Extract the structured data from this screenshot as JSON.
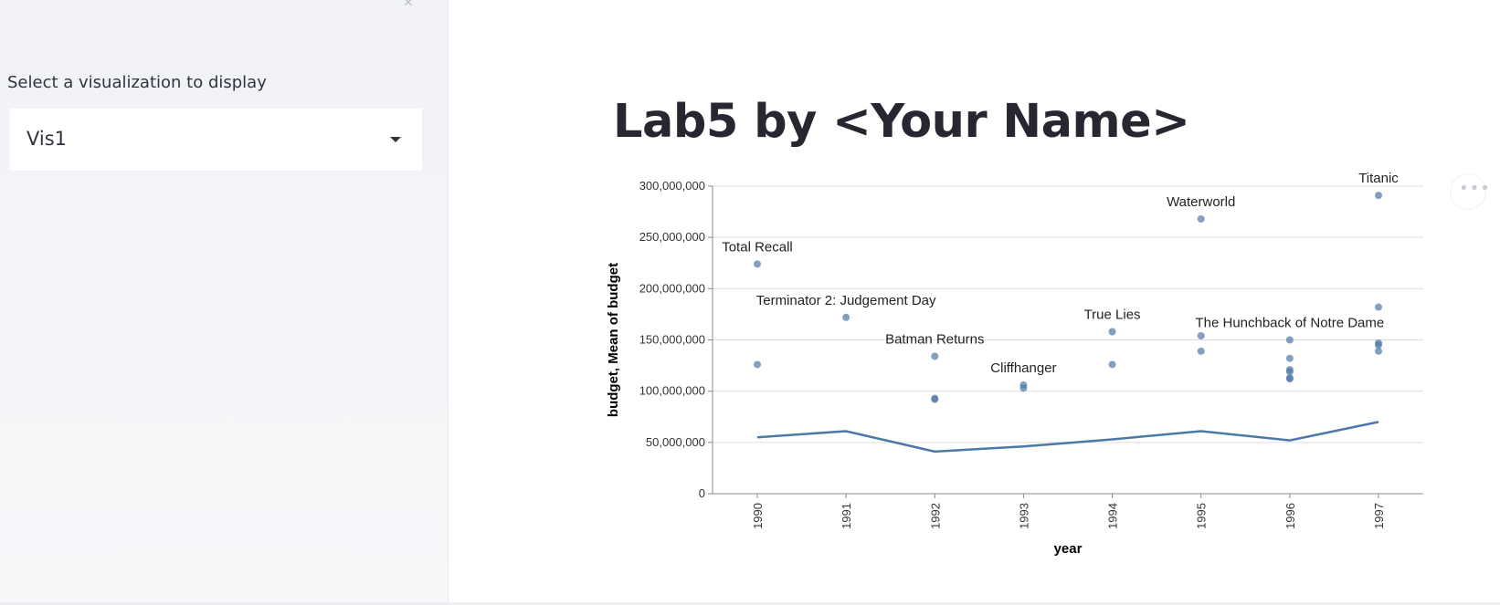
{
  "sidebar": {
    "select_label": "Select a visualization to display",
    "selected_value": "Vis1"
  },
  "main": {
    "title": "Lab5 by <Your Name>"
  },
  "colors": {
    "accent": "#4c78a8",
    "point": "#4c78a8",
    "line": "#4c78a8",
    "grid": "#dddddd",
    "axis": "#888888",
    "sidebar_bg": "#f0f2f6",
    "title_text": "#262730"
  },
  "icons": {
    "select_caret": "chevron-down-icon",
    "menu": "more-horizontal-icon",
    "collapse": "collapse-icon"
  },
  "chart_data": {
    "type": "scatter",
    "xlabel": "year",
    "ylabel": "budget, Mean of budget",
    "categories": [
      "1990",
      "1991",
      "1992",
      "1993",
      "1994",
      "1995",
      "1996",
      "1997"
    ],
    "ylim": [
      0,
      300000000
    ],
    "yticks": [
      "0",
      "50,000,000",
      "100,000,000",
      "150,000,000",
      "200,000,000",
      "250,000,000",
      "300,000,000"
    ],
    "grid": true,
    "points": [
      {
        "x": "1990",
        "y": 224000000
      },
      {
        "x": "1990",
        "y": 126000000
      },
      {
        "x": "1991",
        "y": 172000000
      },
      {
        "x": "1992",
        "y": 134000000
      },
      {
        "x": "1992",
        "y": 93000000
      },
      {
        "x": "1992",
        "y": 92000000
      },
      {
        "x": "1993",
        "y": 106000000
      },
      {
        "x": "1993",
        "y": 103000000
      },
      {
        "x": "1994",
        "y": 158000000
      },
      {
        "x": "1994",
        "y": 126000000
      },
      {
        "x": "1995",
        "y": 268000000
      },
      {
        "x": "1995",
        "y": 154000000
      },
      {
        "x": "1995",
        "y": 139000000
      },
      {
        "x": "1996",
        "y": 150000000
      },
      {
        "x": "1996",
        "y": 132000000
      },
      {
        "x": "1996",
        "y": 121000000
      },
      {
        "x": "1996",
        "y": 119000000
      },
      {
        "x": "1996",
        "y": 113000000
      },
      {
        "x": "1996",
        "y": 112000000
      },
      {
        "x": "1997",
        "y": 291000000
      },
      {
        "x": "1997",
        "y": 182000000
      },
      {
        "x": "1997",
        "y": 147000000
      },
      {
        "x": "1997",
        "y": 145000000
      },
      {
        "x": "1997",
        "y": 139000000
      }
    ],
    "annotations": [
      {
        "label": "Total Recall",
        "x": "1990",
        "y": 224000000
      },
      {
        "label": "Terminator 2: Judgement Day",
        "x": "1991",
        "y": 172000000
      },
      {
        "label": "Batman Returns",
        "x": "1992",
        "y": 134000000
      },
      {
        "label": "Cliffhanger",
        "x": "1993",
        "y": 106000000
      },
      {
        "label": "True Lies",
        "x": "1994",
        "y": 158000000
      },
      {
        "label": "Waterworld",
        "x": "1995",
        "y": 268000000
      },
      {
        "label": "The Hunchback of Notre Dame",
        "x": "1996",
        "y": 150000000
      },
      {
        "label": "Titanic",
        "x": "1997",
        "y": 291000000
      }
    ],
    "mean_series": {
      "x": [
        "1990",
        "1991",
        "1992",
        "1993",
        "1994",
        "1995",
        "1996",
        "1997"
      ],
      "values": [
        55000000,
        61000000,
        41000000,
        46000000,
        53000000,
        61000000,
        52000000,
        70000000
      ]
    }
  }
}
